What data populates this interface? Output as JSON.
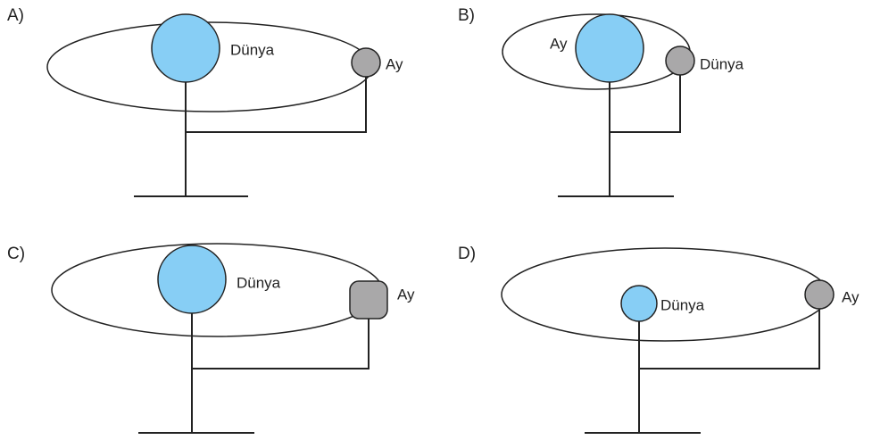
{
  "options": [
    {
      "letter": "A)",
      "blue_label": "Dünya",
      "grey_label": "Ay"
    },
    {
      "letter": "B)",
      "blue_label": "Ay",
      "grey_label": "Dünya"
    },
    {
      "letter": "C)",
      "blue_label": "Dünya",
      "grey_label": "Ay"
    },
    {
      "letter": "D)",
      "blue_label": "Dünya",
      "grey_label": "Ay"
    }
  ]
}
